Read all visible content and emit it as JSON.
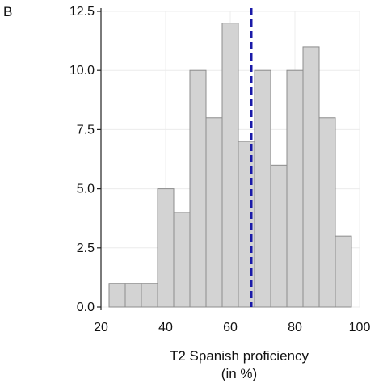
{
  "panel_label": "B",
  "chart_data": {
    "type": "bar",
    "subtype": "histogram",
    "xlabel": "T2 Spanish proficiency",
    "xlabel_unit": "(in %)",
    "ylabel": "",
    "xlim": [
      20,
      100
    ],
    "ylim": [
      0,
      12.5
    ],
    "x_ticks": [
      "20",
      "40",
      "60",
      "80",
      "100"
    ],
    "y_ticks": [
      "0.0",
      "2.5",
      "5.0",
      "7.5",
      "10.0",
      "12.5"
    ],
    "bin_width": 5,
    "bins": [
      {
        "start": 22.5,
        "end": 27.5,
        "value": 1
      },
      {
        "start": 27.5,
        "end": 32.5,
        "value": 1
      },
      {
        "start": 32.5,
        "end": 37.5,
        "value": 1
      },
      {
        "start": 37.5,
        "end": 42.5,
        "value": 5
      },
      {
        "start": 42.5,
        "end": 47.5,
        "value": 4
      },
      {
        "start": 47.5,
        "end": 52.5,
        "value": 10
      },
      {
        "start": 52.5,
        "end": 57.5,
        "value": 8
      },
      {
        "start": 57.5,
        "end": 62.5,
        "value": 12
      },
      {
        "start": 62.5,
        "end": 67.5,
        "value": 7
      },
      {
        "start": 67.5,
        "end": 72.5,
        "value": 10
      },
      {
        "start": 72.5,
        "end": 77.5,
        "value": 6
      },
      {
        "start": 77.5,
        "end": 82.5,
        "value": 10
      },
      {
        "start": 82.5,
        "end": 87.5,
        "value": 11
      },
      {
        "start": 87.5,
        "end": 92.5,
        "value": 8
      },
      {
        "start": 92.5,
        "end": 97.5,
        "value": 3
      }
    ],
    "mean_line": {
      "x": 66.5,
      "style": "dashed"
    },
    "grid": true,
    "colors": {
      "bar_fill": "#d3d3d3",
      "bar_stroke": "#8c8c8c",
      "mean_line": "#1a1aa8",
      "grid": "#ececec",
      "axis": "#222222"
    }
  }
}
